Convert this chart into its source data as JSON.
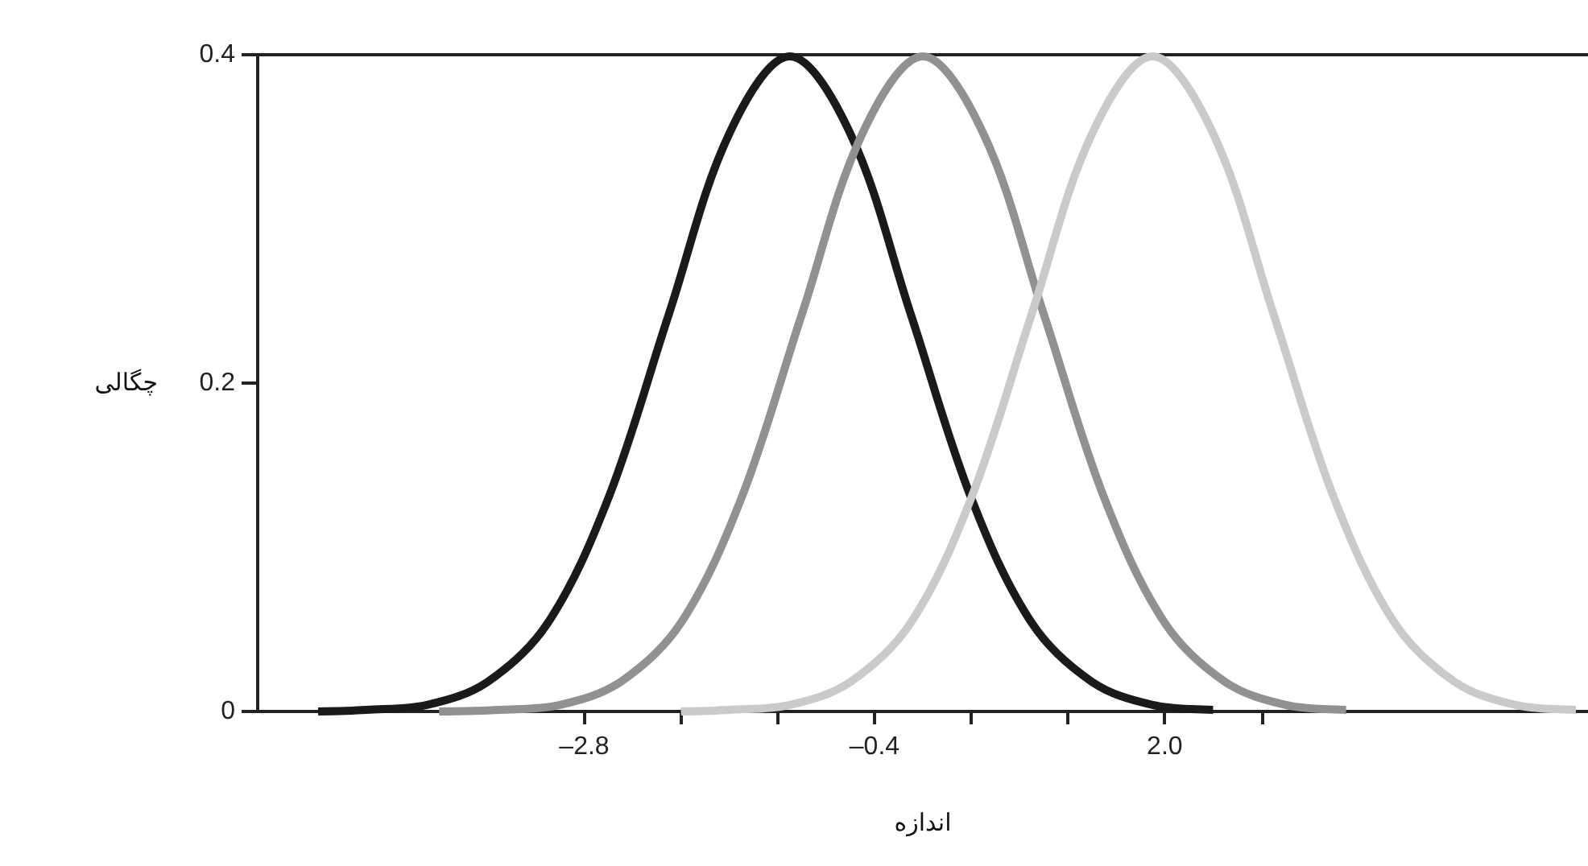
{
  "chart_data": {
    "type": "line",
    "xlabel": "اندازه",
    "ylabel": "چگالی",
    "xlim": [
      -5.5,
      5.5
    ],
    "xticks": [
      {
        "value": -2.8,
        "label": "–2.8"
      },
      {
        "value": -2.0,
        "label": null
      },
      {
        "value": -1.2,
        "label": null
      },
      {
        "value": -0.4,
        "label": "–0.4"
      },
      {
        "value": 0.4,
        "label": null
      },
      {
        "value": 1.2,
        "label": null
      },
      {
        "value": 2.0,
        "label": "2.0"
      },
      {
        "value": 2.8,
        "label": null
      }
    ],
    "ylim": [
      0,
      0.4
    ],
    "yticks": [
      0,
      0.2,
      0.4
    ],
    "grid": false,
    "marker": "none",
    "line_style": "solid",
    "series": [
      {
        "color": "#1a1a1a",
        "x": [
          -5.0,
          -4.6,
          -4.1,
          -3.6,
          -3.1,
          -2.6,
          -2.1,
          -1.6,
          -1.1,
          -0.6,
          -0.1,
          0.4,
          0.9,
          1.4,
          1.9,
          2.4
        ],
        "values": [
          0.0,
          0.001,
          0.004,
          0.018,
          0.054,
          0.13,
          0.242,
          0.352,
          0.399,
          0.352,
          0.242,
          0.13,
          0.054,
          0.018,
          0.004,
          0.001
        ]
      },
      {
        "color": "#919191",
        "x": [
          -4.0,
          -3.5,
          -3.0,
          -2.5,
          -2.0,
          -1.5,
          -1.0,
          -0.5,
          0.0,
          0.5,
          1.0,
          1.5,
          2.0,
          2.5,
          3.0,
          3.5
        ],
        "values": [
          0.0,
          0.001,
          0.004,
          0.018,
          0.054,
          0.13,
          0.242,
          0.352,
          0.399,
          0.352,
          0.242,
          0.13,
          0.054,
          0.018,
          0.004,
          0.001
        ]
      },
      {
        "color": "#cacaca",
        "x": [
          -2.0,
          -1.6,
          -1.1,
          -0.6,
          -0.1,
          0.4,
          0.9,
          1.4,
          1.9,
          2.4,
          2.9,
          3.4,
          3.9,
          4.4,
          4.9,
          5.4
        ],
        "values": [
          0.0,
          0.001,
          0.004,
          0.018,
          0.054,
          0.13,
          0.242,
          0.352,
          0.399,
          0.352,
          0.242,
          0.13,
          0.054,
          0.018,
          0.004,
          0.001
        ]
      }
    ]
  }
}
